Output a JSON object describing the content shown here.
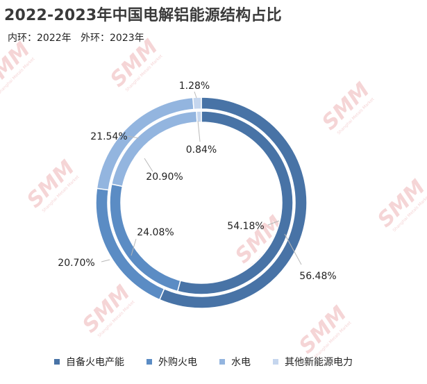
{
  "title": "2022-2023年中国电解铝能源结构占比",
  "subtitle": {
    "inner_prefix": "内环：",
    "inner_year": "2022年",
    "outer_prefix": "外环：",
    "outer_year": "2023年"
  },
  "watermark": {
    "text": "SMM",
    "tagline": "Shanghai Metals Market",
    "color": "#f2c4c6"
  },
  "chart_data": {
    "type": "pie",
    "variant": "nested-donut",
    "categories": [
      "自备火电产能",
      "外购火电",
      "水电",
      "其他新能源电力"
    ],
    "colors": [
      "#4873a6",
      "#5b8cc4",
      "#93b5df",
      "#c5d6ee"
    ],
    "series": [
      {
        "ring": "inner",
        "values": [
          54.18,
          24.08,
          20.9,
          0.84
        ],
        "labels": [
          "54.18%",
          "24.08%",
          "20.90%",
          "0.84%"
        ]
      },
      {
        "ring": "outer",
        "values": [
          56.48,
          20.7,
          21.54,
          1.28
        ],
        "labels": [
          "56.48%",
          "20.70%",
          "21.54%",
          "1.28%"
        ]
      }
    ],
    "legend_position": "bottom"
  }
}
